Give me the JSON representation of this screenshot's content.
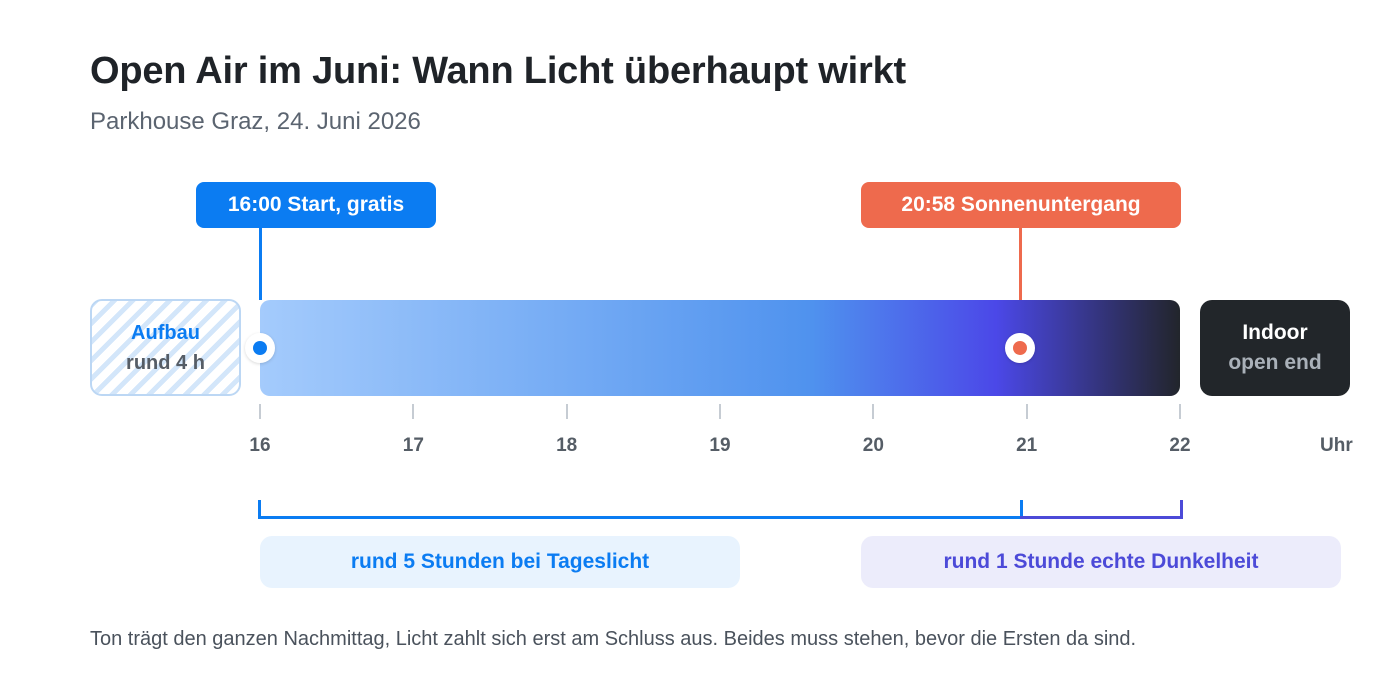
{
  "title": "Open Air im Juni: Wann Licht überhaupt wirkt",
  "subtitle": "Parkhouse Graz, 24. Juni 2026",
  "colors": {
    "accent_blue": "#0b7cf2",
    "sunset": "#ee6a4d",
    "dark_violet": "#4c4ad8",
    "dark": "#22262a",
    "setup_text_top": "#0b7cf2",
    "setup_text_bottom": "#565d66",
    "indoor_sub": "#aab1b9"
  },
  "start_pill": {
    "label": "16:00 Start, gratis"
  },
  "sunset_pill": {
    "label": "20:58 Sonnenuntergang"
  },
  "setup_box": {
    "title": "Aufbau",
    "subtitle": "rund 4 h"
  },
  "indoor_box": {
    "title": "Indoor",
    "subtitle": "open end"
  },
  "timeline": {
    "start_hour": 16,
    "end_hour": 22,
    "start_time": 16.0,
    "sunset_time": 20.967,
    "ticks": [
      "16",
      "17",
      "18",
      "19",
      "20",
      "21",
      "22"
    ],
    "unit": "Uhr",
    "bar_gradient": [
      "#a4cbfc",
      "#4f92ee",
      "#4b48e8",
      "#22252b"
    ]
  },
  "brackets": {
    "daylight": {
      "label": "rund 5 Stunden bei Tageslicht",
      "color": "#0b7cf2",
      "text_color": "#0b7cf2"
    },
    "darkness": {
      "label": "rund 1 Stunde echte Dunkelheit",
      "color": "#4c4ad8",
      "text_color": "#4c4ad8"
    }
  },
  "footnote": "Ton trägt den ganzen Nachmittag, Licht zahlt sich erst am Schluss aus. Beides muss stehen, bevor die Ersten da sind."
}
